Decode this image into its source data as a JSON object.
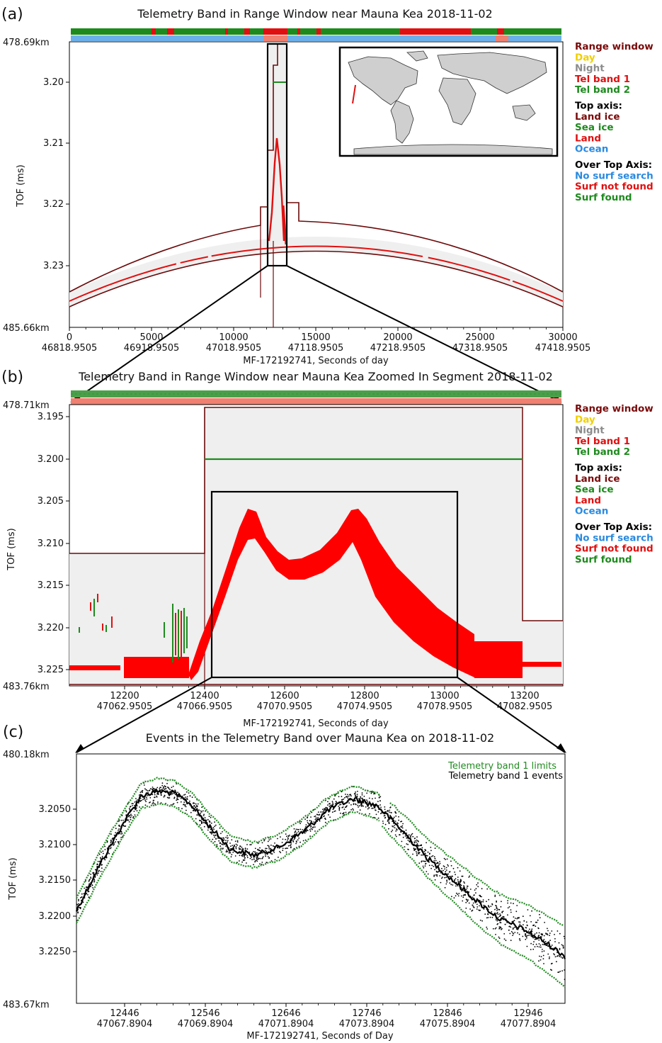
{
  "panels": {
    "a": {
      "letter": "(a)",
      "title": "Telemetry Band in Range Window near Mauna Kea 2018-11-02",
      "ylabel": "TOF (ms)",
      "xlabel": "MF-172192741, Seconds of day",
      "range_top": "478.69km",
      "range_bottom": "485.66km",
      "yticks": [
        "3.20",
        "3.21",
        "3.22",
        "3.23"
      ],
      "xticks": [
        {
          "v": "0",
          "sod": "46818.9505"
        },
        {
          "v": "5000",
          "sod": "46918.9505"
        },
        {
          "v": "10000",
          "sod": "47018.9505"
        },
        {
          "v": "15000",
          "sod": "47118.9505"
        },
        {
          "v": "20000",
          "sod": "47218.9505"
        },
        {
          "v": "25000",
          "sod": "47318.9505"
        },
        {
          "v": "30000",
          "sod": "47418.9505"
        }
      ]
    },
    "b": {
      "letter": "(b)",
      "title": "Telemetry Band in Range Window near Mauna Kea Zoomed In Segment 2018-11-02",
      "ylabel": "TOF (ms)",
      "xlabel": "MF-172192741, Seconds of day",
      "range_top": "478.71km",
      "range_bottom": "483.76km",
      "yticks": [
        "3.195",
        "3.200",
        "3.205",
        "3.210",
        "3.215",
        "3.220",
        "3.225"
      ],
      "xticks": [
        {
          "v": "12200",
          "sod": "47062.9505"
        },
        {
          "v": "12400",
          "sod": "47066.9505"
        },
        {
          "v": "12600",
          "sod": "47070.9505"
        },
        {
          "v": "12800",
          "sod": "47074.9505"
        },
        {
          "v": "13000",
          "sod": "47078.9505"
        },
        {
          "v": "13200",
          "sod": "47082.9505"
        }
      ]
    },
    "c": {
      "letter": "(c)",
      "title": "Events in the Telemetry Band over Mauna Kea on 2018-11-02",
      "ylabel": "TOF (ms)",
      "xlabel": "MF-172192741, Seconds of Day",
      "range_top": "480.18km",
      "range_bottom": "483.67km",
      "yticks": [
        "3.2050",
        "3.2100",
        "3.2150",
        "3.2200",
        "3.2250"
      ],
      "xticks": [
        {
          "v": "12446",
          "sod": "47067.8904"
        },
        {
          "v": "12546",
          "sod": "47069.8904"
        },
        {
          "v": "12646",
          "sod": "47071.8904"
        },
        {
          "v": "12746",
          "sod": "47073.8904"
        },
        {
          "v": "12846",
          "sod": "47075.8904"
        },
        {
          "v": "12946",
          "sod": "47077.8904"
        }
      ],
      "legend": [
        {
          "label": "Telemetry band 1 limits",
          "color": "#228b22"
        },
        {
          "label": "Telemetry band 1 events",
          "color": "#000000"
        }
      ]
    }
  },
  "side_legend": [
    {
      "label": "Range window",
      "color": "#7a0a0a"
    },
    {
      "label": "Day",
      "color": "#f0d000"
    },
    {
      "label": "Night",
      "color": "#8c8c8c"
    },
    {
      "label": "Tel band 1",
      "color": "#e01010"
    },
    {
      "label": "Tel band 2",
      "color": "#1e8a1e"
    },
    {
      "label": "Top axis:",
      "color": "#000000"
    },
    {
      "label": "Land ice",
      "color": "#7a0a0a"
    },
    {
      "label": "Sea ice",
      "color": "#1e8a1e"
    },
    {
      "label": "Land",
      "color": "#e01010"
    },
    {
      "label": "Ocean",
      "color": "#2a8ae0"
    },
    {
      "label": "Over Top Axis:",
      "color": "#000000"
    },
    {
      "label": "No surf search",
      "color": "#2a8ae0"
    },
    {
      "label": "Surf not found",
      "color": "#e01010"
    },
    {
      "label": "Surf found",
      "color": "#1e8a1e"
    }
  ],
  "chart_data": [
    {
      "type": "line",
      "title": "Telemetry Band in Range Window near Mauna Kea 2018-11-02",
      "xlabel": "MF-172192741, Seconds of day",
      "ylabel": "TOF (ms)",
      "xlim": [
        0,
        30000
      ],
      "ylim": [
        3.2365,
        3.1905
      ],
      "inverted_y": true,
      "series": [
        {
          "name": "Range window",
          "x": [
            0,
            5000,
            10000,
            12000,
            12500,
            13000,
            15000,
            20000,
            25000,
            30000
          ],
          "y": [
            3.2335,
            3.2283,
            3.225,
            3.2245,
            3.1925,
            3.2245,
            3.2242,
            3.2247,
            3.2274,
            3.2335
          ]
        },
        {
          "name": "Tel band 1",
          "x": [
            0,
            5000,
            10000,
            12000,
            12400,
            12700,
            13000,
            15000,
            20000,
            25000,
            30000
          ],
          "y": [
            3.2357,
            3.2298,
            3.2265,
            3.2258,
            3.206,
            3.2125,
            3.226,
            3.2255,
            3.2262,
            3.2292,
            3.2357
          ]
        },
        {
          "name": "Tel band 2",
          "x": [
            12400,
            13200
          ],
          "y": [
            3.2,
            3.2
          ]
        }
      ]
    },
    {
      "type": "line",
      "title": "Telemetry Band in Range Window near Mauna Kea Zoomed In Segment 2018-11-02",
      "xlabel": "MF-172192741, Seconds of day",
      "ylabel": "TOF (ms)",
      "xlim": [
        12000,
        13250
      ],
      "ylim": [
        3.2268,
        3.1935
      ],
      "inverted_y": true,
      "series": [
        {
          "name": "Range window",
          "x": [
            12000,
            12330,
            12330,
            13170,
            13170,
            13250
          ],
          "y": [
            3.2115,
            3.2115,
            3.194,
            3.194,
            3.2193,
            3.2193
          ]
        },
        {
          "name": "Tel band 1",
          "x": [
            12000,
            12100,
            12200,
            12300,
            12350,
            12400,
            12450,
            12500,
            12550,
            12600,
            12650,
            12700,
            12750,
            12800,
            12850,
            12900,
            12950,
            13000,
            13050,
            13100,
            13200,
            13250
          ],
          "y": [
            3.2243,
            3.2244,
            3.2245,
            3.2234,
            3.2215,
            3.2165,
            3.211,
            3.208,
            3.2085,
            3.2115,
            3.213,
            3.212,
            3.21,
            3.209,
            3.211,
            3.215,
            3.2185,
            3.221,
            3.2225,
            3.2235,
            3.224,
            3.224
          ]
        },
        {
          "name": "Tel band 2",
          "x": [
            12330,
            13170
          ],
          "y": [
            3.2,
            3.2
          ]
        }
      ]
    },
    {
      "type": "scatter",
      "title": "Events in the Telemetry Band over Mauna Kea on 2018-11-02",
      "xlabel": "MF-172192741, Seconds of Day",
      "ylabel": "TOF (ms)",
      "xlim": [
        12400,
        13000
      ],
      "ylim": [
        3.2267,
        3.2033
      ],
      "inverted_y": true,
      "series": [
        {
          "name": "Telemetry band 1 events",
          "x": [
            12400,
            12430,
            12460,
            12480,
            12500,
            12520,
            12540,
            12560,
            12590,
            12620,
            12650,
            12680,
            12710,
            12740,
            12770,
            12800,
            12830,
            12860,
            12890,
            12920,
            12950,
            12980,
            13000
          ],
          "y": [
            3.218,
            3.2135,
            3.2095,
            3.2072,
            3.2068,
            3.207,
            3.208,
            3.2098,
            3.2123,
            3.2128,
            3.212,
            3.2105,
            3.2085,
            3.2075,
            3.2082,
            3.2105,
            3.213,
            3.215,
            3.217,
            3.2188,
            3.2198,
            3.2212,
            3.2223
          ]
        },
        {
          "name": "Telemetry band 1 limits",
          "x": [
            12400,
            12460,
            12500,
            12520,
            12560,
            12620,
            12680,
            12740,
            12780,
            12830,
            12890,
            12950,
            13000
          ],
          "y": [
            3.219,
            3.211,
            3.2085,
            3.2084,
            3.2112,
            3.214,
            3.212,
            3.2088,
            3.209,
            3.2145,
            3.2193,
            3.2228,
            3.225
          ]
        }
      ]
    }
  ]
}
